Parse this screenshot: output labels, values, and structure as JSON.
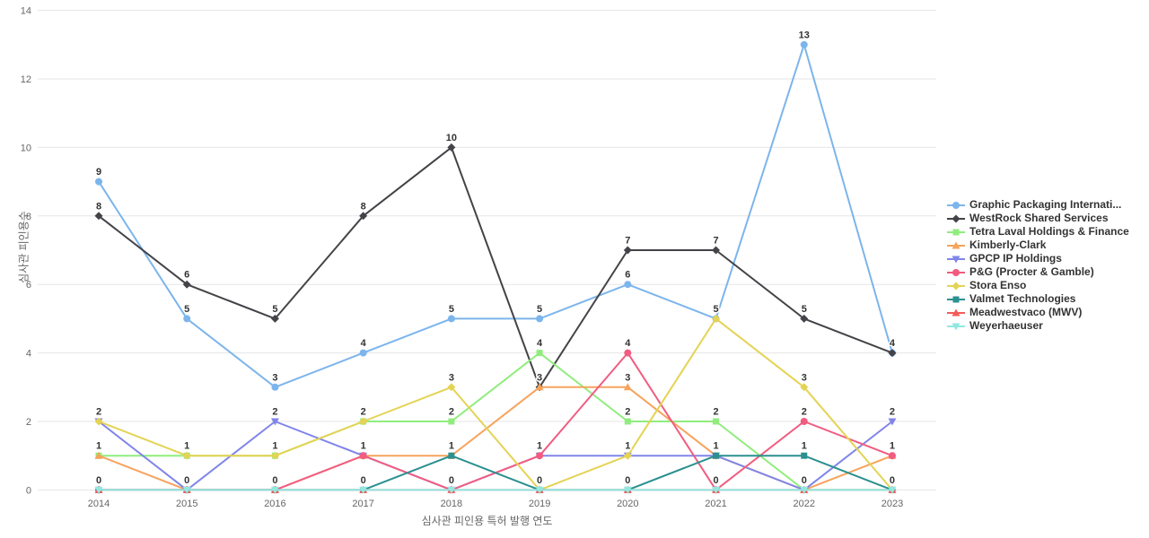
{
  "chart_data": {
    "type": "line",
    "title": "",
    "xlabel": "심사관 피인용 특허 발행 연도",
    "ylabel": "심사관 피인용수",
    "x": [
      2014,
      2015,
      2016,
      2017,
      2018,
      2019,
      2020,
      2021,
      2022,
      2023
    ],
    "x_tick_labels": [
      "2014",
      "2015",
      "2016",
      "2017",
      "2018",
      "2019",
      "2020",
      "2021",
      "2022",
      "2023"
    ],
    "ylim": [
      0,
      14
    ],
    "y_tick_step": 2,
    "y_tick_labels": [
      "0",
      "2",
      "4",
      "6",
      "8",
      "10",
      "12",
      "14"
    ],
    "grid": true,
    "legend_position": "right",
    "colors": {
      "grid": "#e6e6e6",
      "tick_label": "#666666",
      "axis_title": "#666666",
      "data_label": "#333333",
      "legend_label": "#333333"
    },
    "series": [
      {
        "name": "Graphic Packaging Internati...",
        "color": "#7cb5ec",
        "marker": "circle",
        "values": [
          9,
          5,
          3,
          4,
          5,
          5,
          6,
          5,
          13,
          4
        ]
      },
      {
        "name": "WestRock Shared Services",
        "color": "#434348",
        "marker": "diamond",
        "values": [
          8,
          6,
          5,
          8,
          10,
          3,
          7,
          7,
          5,
          4
        ]
      },
      {
        "name": "Tetra Laval Holdings & Finance",
        "color": "#90ed7d",
        "marker": "square",
        "values": [
          1,
          1,
          1,
          2,
          2,
          4,
          2,
          2,
          0,
          0
        ]
      },
      {
        "name": "Kimberly-Clark",
        "color": "#f7a35c",
        "marker": "triangle",
        "values": [
          1,
          0,
          0,
          1,
          1,
          3,
          3,
          1,
          0,
          1
        ]
      },
      {
        "name": "GPCP IP Holdings",
        "color": "#8085e9",
        "marker": "triangle-down",
        "values": [
          2,
          0,
          2,
          1,
          0,
          1,
          1,
          1,
          0,
          2
        ]
      },
      {
        "name": "P&G (Procter & Gamble)",
        "color": "#f15c80",
        "marker": "circle",
        "values": [
          0,
          0,
          0,
          1,
          0,
          1,
          4,
          0,
          2,
          1
        ]
      },
      {
        "name": "Stora Enso",
        "color": "#e4d354",
        "marker": "diamond",
        "values": [
          2,
          1,
          1,
          2,
          3,
          0,
          1,
          5,
          3,
          0
        ]
      },
      {
        "name": "Valmet Technologies",
        "color": "#2b908f",
        "marker": "square",
        "values": [
          0,
          0,
          0,
          0,
          1,
          0,
          0,
          1,
          1,
          0
        ]
      },
      {
        "name": "Meadwestvaco (MWV)",
        "color": "#f45b5b",
        "marker": "triangle",
        "values": [
          0,
          0,
          0,
          0,
          0,
          0,
          0,
          0,
          0,
          0
        ]
      },
      {
        "name": "Weyerhaeuser",
        "color": "#91e8e1",
        "marker": "triangle-down",
        "values": [
          0,
          0,
          0,
          0,
          0,
          0,
          0,
          0,
          0,
          0
        ]
      }
    ]
  }
}
